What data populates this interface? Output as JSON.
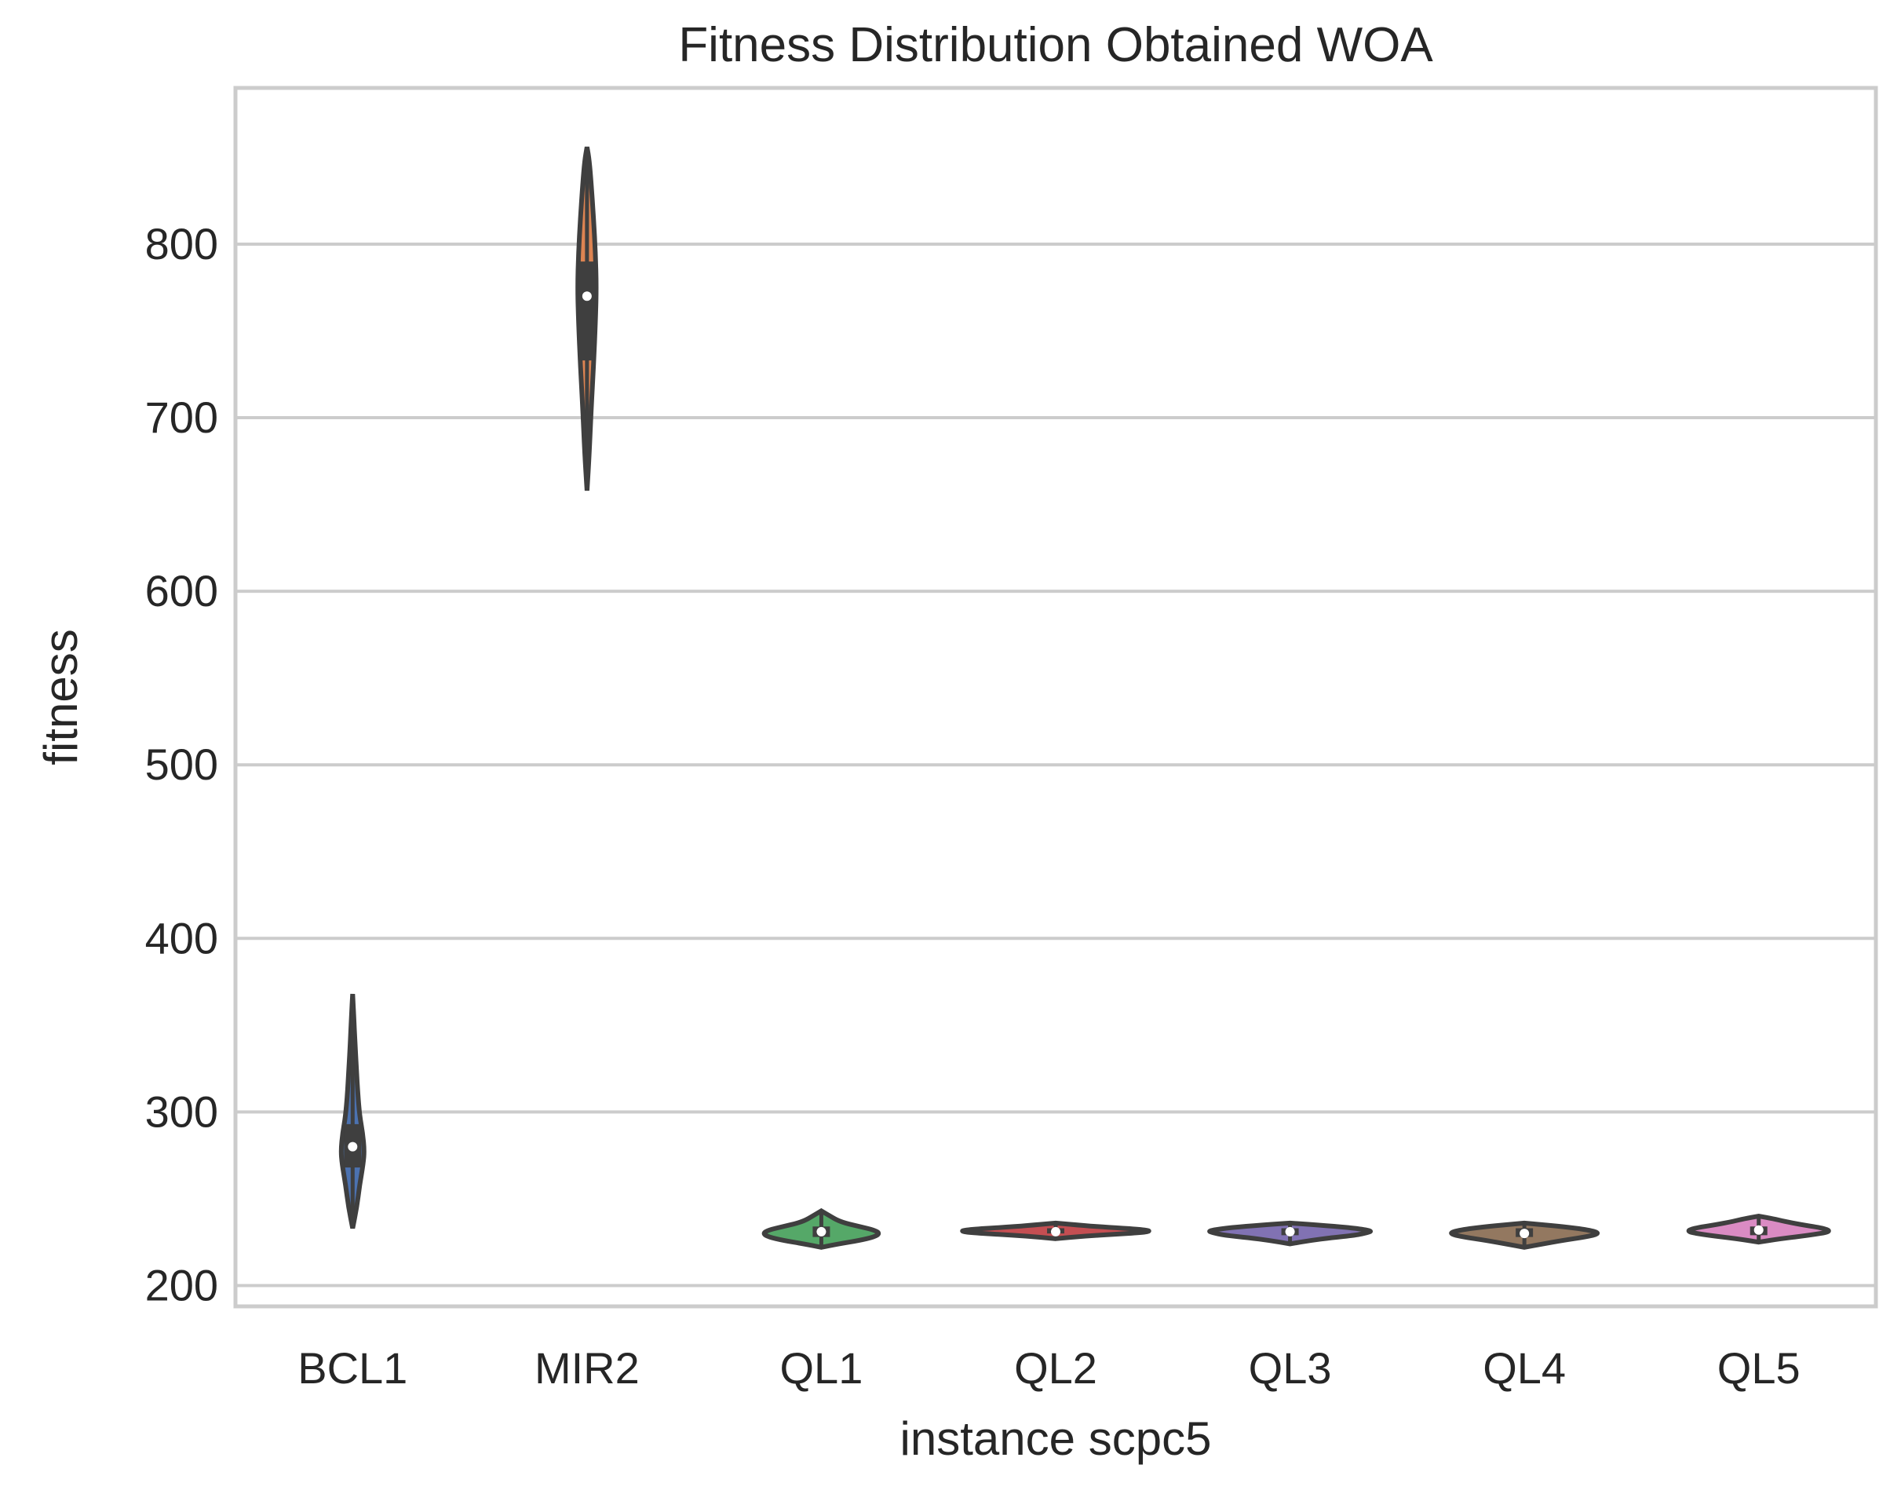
{
  "chart_data": {
    "type": "violin",
    "title": "Fitness Distribution Obtained WOA",
    "xlabel": "instance scpc5",
    "ylabel": "fitness",
    "ylim": [
      188,
      890
    ],
    "yticks": [
      200,
      300,
      400,
      500,
      600,
      700,
      800
    ],
    "grid": true,
    "categories": [
      "BCL1",
      "MIR2",
      "QL1",
      "QL2",
      "QL3",
      "QL4",
      "QL5"
    ],
    "series": [
      {
        "name": "BCL1",
        "color": "#4c72b0",
        "min": 233,
        "q1": 268,
        "median": 280,
        "q3": 293,
        "max": 368,
        "width": 0.1,
        "profile": [
          [
            233,
            0.0
          ],
          [
            245,
            0.35
          ],
          [
            258,
            0.6
          ],
          [
            270,
            0.9
          ],
          [
            278,
            1.0
          ],
          [
            288,
            0.85
          ],
          [
            298,
            0.6
          ],
          [
            310,
            0.45
          ],
          [
            325,
            0.32
          ],
          [
            340,
            0.2
          ],
          [
            355,
            0.1
          ],
          [
            368,
            0.0
          ]
        ]
      },
      {
        "name": "MIR2",
        "color": "#dd8452",
        "min": 658,
        "q1": 733,
        "median": 770,
        "q3": 790,
        "max": 856,
        "width": 0.08,
        "profile": [
          [
            658,
            0.0
          ],
          [
            680,
            0.25
          ],
          [
            705,
            0.45
          ],
          [
            730,
            0.7
          ],
          [
            755,
            0.9
          ],
          [
            775,
            1.0
          ],
          [
            795,
            0.9
          ],
          [
            815,
            0.7
          ],
          [
            835,
            0.45
          ],
          [
            848,
            0.25
          ],
          [
            856,
            0.0
          ]
        ]
      },
      {
        "name": "QL1",
        "color": "#55a868",
        "min": 222,
        "q1": 228,
        "median": 231,
        "q3": 234,
        "max": 243,
        "width": 0.5,
        "profile": [
          [
            222,
            0.0
          ],
          [
            224,
            0.3
          ],
          [
            226,
            0.65
          ],
          [
            228,
            0.9
          ],
          [
            230,
            1.0
          ],
          [
            232,
            0.9
          ],
          [
            234,
            0.65
          ],
          [
            236,
            0.4
          ],
          [
            238,
            0.25
          ],
          [
            240,
            0.15
          ],
          [
            243,
            0.0
          ]
        ]
      },
      {
        "name": "QL2",
        "color": "#c44e52",
        "min": 227,
        "q1": 230,
        "median": 231,
        "q3": 233,
        "max": 236,
        "width": 0.82,
        "profile": [
          [
            227,
            0.0
          ],
          [
            228.5,
            0.3
          ],
          [
            229.5,
            0.6
          ],
          [
            230.5,
            0.9
          ],
          [
            231.5,
            1.0
          ],
          [
            232.5,
            0.85
          ],
          [
            233.5,
            0.55
          ],
          [
            234.5,
            0.3
          ],
          [
            236,
            0.0
          ]
        ]
      },
      {
        "name": "QL3",
        "color": "#8172b3",
        "min": 224,
        "q1": 229,
        "median": 231,
        "q3": 233,
        "max": 236,
        "width": 0.7,
        "profile": [
          [
            224,
            0.0
          ],
          [
            226,
            0.25
          ],
          [
            227.5,
            0.5
          ],
          [
            229,
            0.8
          ],
          [
            230.5,
            0.95
          ],
          [
            231.5,
            1.0
          ],
          [
            233,
            0.8
          ],
          [
            234.5,
            0.45
          ],
          [
            236,
            0.0
          ]
        ]
      },
      {
        "name": "QL4",
        "color": "#937860",
        "min": 222,
        "q1": 228,
        "median": 230,
        "q3": 233,
        "max": 236,
        "width": 0.65,
        "profile": [
          [
            222,
            0.0
          ],
          [
            224,
            0.25
          ],
          [
            226,
            0.5
          ],
          [
            228,
            0.8
          ],
          [
            230,
            1.0
          ],
          [
            232,
            0.85
          ],
          [
            234,
            0.5
          ],
          [
            235,
            0.25
          ],
          [
            236,
            0.0
          ]
        ]
      },
      {
        "name": "QL5",
        "color": "#da8bc3",
        "min": 225,
        "q1": 229,
        "median": 232,
        "q3": 234,
        "max": 240,
        "width": 0.62,
        "profile": [
          [
            225,
            0.0
          ],
          [
            227,
            0.3
          ],
          [
            229,
            0.7
          ],
          [
            231,
            1.0
          ],
          [
            233,
            0.9
          ],
          [
            235,
            0.6
          ],
          [
            237,
            0.35
          ],
          [
            238.5,
            0.2
          ],
          [
            240,
            0.0
          ]
        ]
      }
    ]
  }
}
